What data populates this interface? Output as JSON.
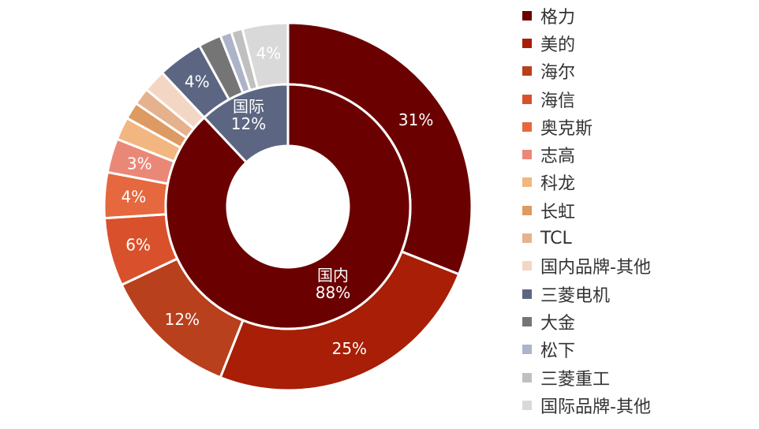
{
  "chart_data": {
    "type": "donut",
    "inner_ring": [
      {
        "label": "国内",
        "value": 88,
        "value_label": "88%",
        "color": "#6b0000"
      },
      {
        "label": "国际",
        "value": 12,
        "value_label": "12%",
        "color": "#5c6682"
      }
    ],
    "outer_ring": [
      {
        "label": "格力",
        "value": 31,
        "value_label": "31%",
        "color": "#6b0000"
      },
      {
        "label": "美的",
        "value": 25,
        "value_label": "25%",
        "color": "#a81e06"
      },
      {
        "label": "海尔",
        "value": 12,
        "value_label": "12%",
        "color": "#b8401d"
      },
      {
        "label": "海信",
        "value": 6,
        "value_label": "6%",
        "color": "#d9512c"
      },
      {
        "label": "奥克斯",
        "value": 4,
        "value_label": "4%",
        "color": "#e5683f"
      },
      {
        "label": "志高",
        "value": 3,
        "value_label": "3%",
        "color": "#ea8878"
      },
      {
        "label": "科龙",
        "value": 2,
        "value_label": "",
        "color": "#f2b680"
      },
      {
        "label": "长虹",
        "value": 1.5,
        "value_label": "",
        "color": "#dd9a62"
      },
      {
        "label": "TCL",
        "value": 1.5,
        "value_label": "",
        "color": "#e6b18d"
      },
      {
        "label": "国内品牌-其他",
        "value": 2,
        "value_label": "",
        "color": "#f3d7c4"
      },
      {
        "label": "三菱电机",
        "value": 4,
        "value_label": "4%",
        "color": "#5c6682"
      },
      {
        "label": "大金",
        "value": 2,
        "value_label": "",
        "color": "#757575"
      },
      {
        "label": "松下",
        "value": 1,
        "value_label": "",
        "color": "#adb3c8"
      },
      {
        "label": "三菱重工",
        "value": 1,
        "value_label": "",
        "color": "#c0c0c0"
      },
      {
        "label": "国际品牌-其他",
        "value": 4,
        "value_label": "4%",
        "color": "#d9d9d9"
      }
    ],
    "legend_position": "right"
  }
}
